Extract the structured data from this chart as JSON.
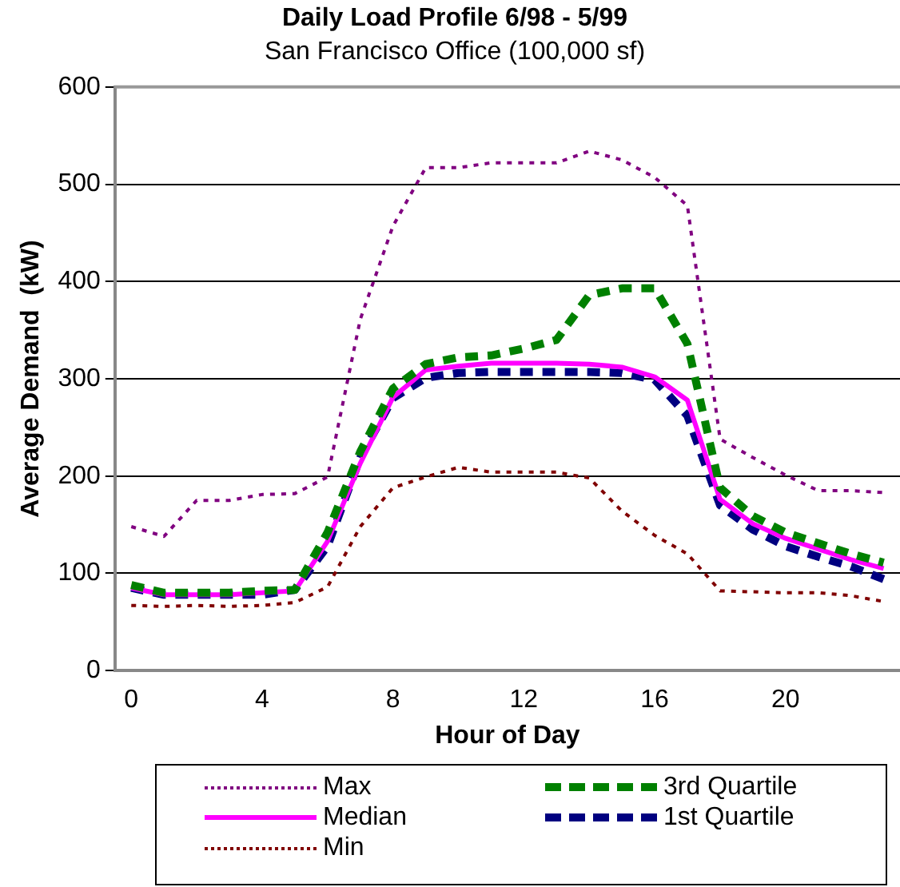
{
  "chart_data": {
    "type": "line",
    "title": "Daily Load Profile 6/98 - 5/99",
    "subtitle": "San Francisco Office (100,000 sf)",
    "xlabel": "Hour of Day",
    "ylabel": "Average Demand  (kW)",
    "categories": [
      "0",
      null,
      null,
      null,
      "4",
      null,
      null,
      null,
      "8",
      null,
      null,
      null,
      "12",
      null,
      null,
      null,
      "16",
      null,
      null,
      null,
      "20",
      null,
      null,
      null
    ],
    "series": [
      {
        "name": "Max",
        "color": "#800080",
        "line_style": "dotted",
        "values": [
          148,
          138,
          175,
          175,
          181,
          182,
          199,
          361,
          457,
          517,
          517,
          522,
          522,
          522,
          534,
          525,
          507,
          478,
          238,
          219,
          201,
          185,
          185,
          183
        ]
      },
      {
        "name": "3rd Quartile",
        "color": "#008000",
        "line_style": "dashed",
        "values": [
          88,
          80,
          80,
          80,
          82,
          83,
          142,
          225,
          290,
          315,
          322,
          324,
          331,
          340,
          386,
          393,
          393,
          336,
          188,
          159,
          142,
          131,
          120,
          111
        ]
      },
      {
        "name": "Median",
        "color": "#ff00ff",
        "line_style": "solid",
        "values": [
          85,
          78,
          78,
          78,
          80,
          82,
          133,
          213,
          281,
          309,
          313,
          316,
          316,
          316,
          315,
          312,
          302,
          278,
          176,
          151,
          136,
          125,
          114,
          105
        ]
      },
      {
        "name": "1st Quartile",
        "color": "#000080",
        "line_style": "dashed",
        "values": [
          85,
          78,
          78,
          78,
          78,
          83,
          128,
          219,
          280,
          301,
          306,
          307,
          307,
          307,
          307,
          306,
          299,
          262,
          170,
          145,
          128,
          117,
          107,
          94
        ]
      },
      {
        "name": "Min",
        "color": "#800000",
        "line_style": "dotted",
        "values": [
          67,
          66,
          67,
          66,
          67,
          70,
          86,
          148,
          188,
          199,
          209,
          204,
          204,
          204,
          198,
          164,
          139,
          120,
          82,
          81,
          80,
          80,
          77,
          71
        ]
      }
    ],
    "ylim": [
      0,
      600
    ],
    "yticks": [
      0,
      100,
      200,
      300,
      400,
      500,
      600
    ],
    "grid": "y",
    "legend": "bottom",
    "marker": "none"
  }
}
